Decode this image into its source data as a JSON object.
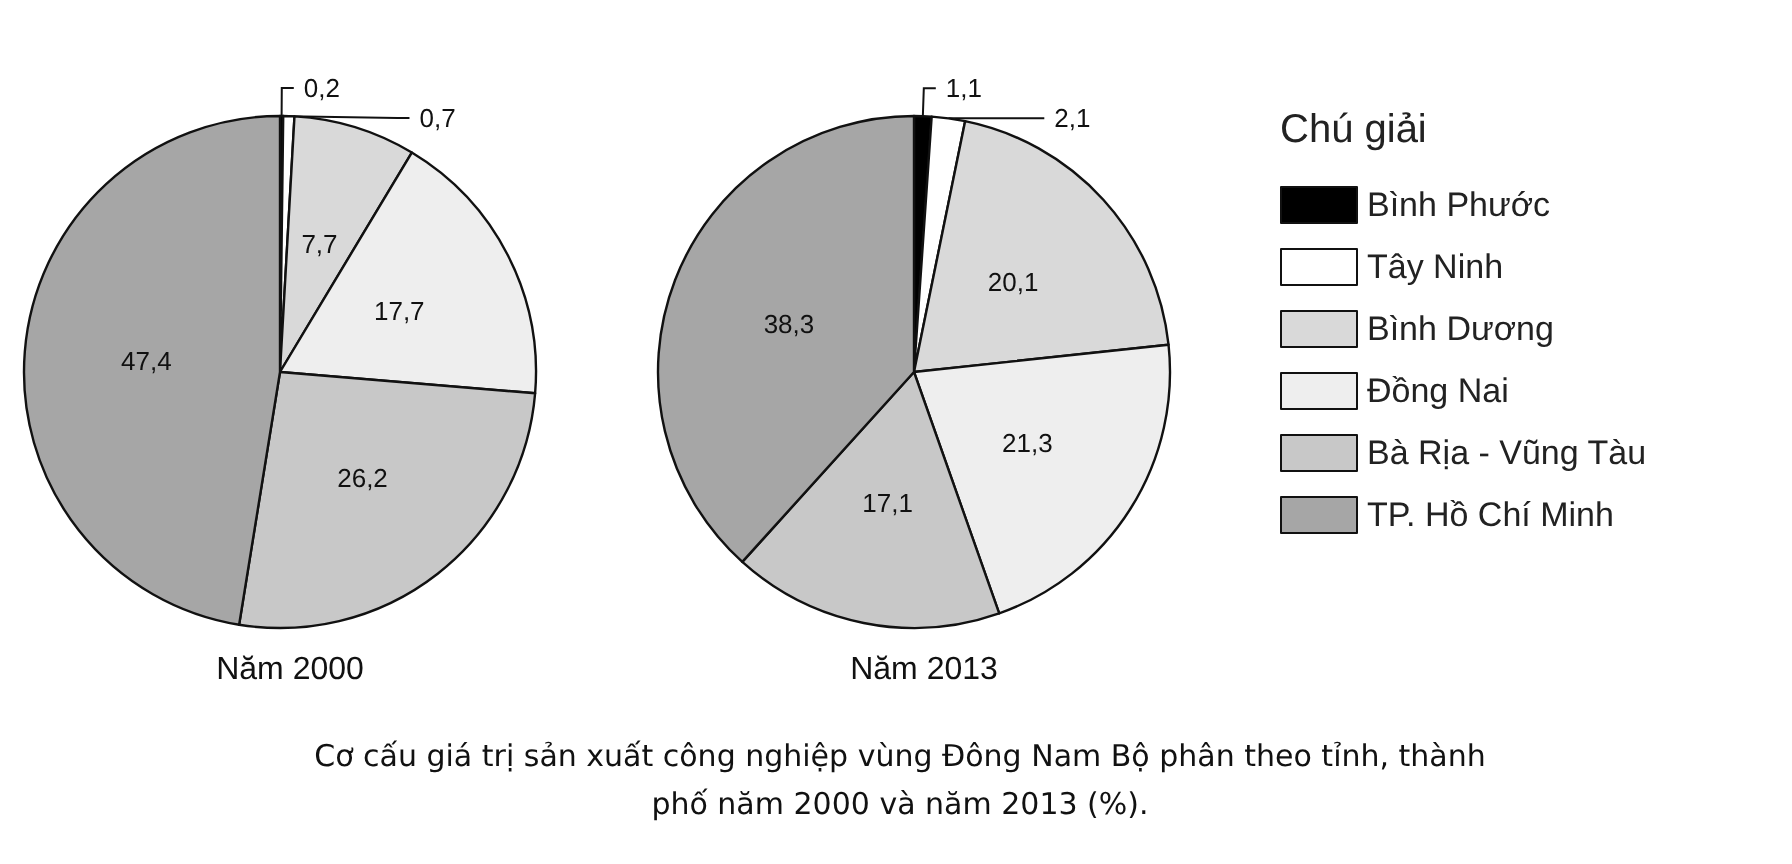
{
  "chart_data": {
    "type": "pie",
    "categories": [
      "Bình Phước",
      "Tây Ninh",
      "Bình Dương",
      "Đồng Nai",
      "Bà Rịa - Vũng Tàu",
      "TP. Hồ Chí Minh"
    ],
    "colors": [
      "#000000",
      "#ffffff",
      "#d9d9d9",
      "#eeeeee",
      "#c8c8c8",
      "#a6a6a6"
    ],
    "legend": "right",
    "legend_title": "Chú giải",
    "series": [
      {
        "name": "Năm 2000",
        "values": [
          0.2,
          0.7,
          7.7,
          17.7,
          26.2,
          47.4
        ],
        "value_labels": [
          "0,2",
          "0,7",
          "7,7",
          "17,7",
          "26,2",
          "47,4"
        ]
      },
      {
        "name": "Năm 2013",
        "values": [
          1.1,
          2.1,
          20.1,
          21.3,
          17.1,
          38.3
        ],
        "value_labels": [
          "1,1",
          "2,1",
          "20,1",
          "21,3",
          "17,1",
          "38,3"
        ]
      }
    ],
    "annotations": [
      "Cơ cấu giá trị sản xuất công nghiệp vùng Đông Nam Bộ phân theo tỉnh, thành phố năm 2000 và năm 2013 (%)."
    ]
  }
}
